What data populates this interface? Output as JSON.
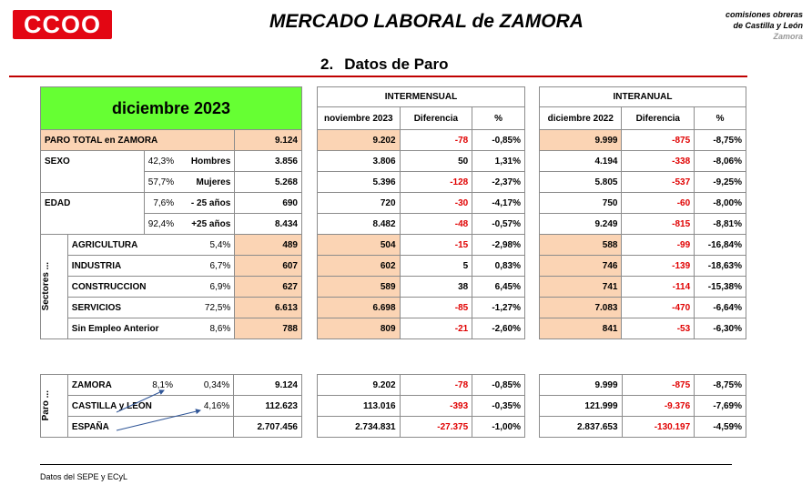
{
  "header": {
    "logo_text": "CCOO",
    "title": "MERCADO LABORAL de ZAMORA",
    "org_line1": "comisiones obreras",
    "org_line2": "de Castilla y León",
    "org_line3": "Zamora",
    "section_num": "2.",
    "section_title": "Datos de Paro"
  },
  "left": {
    "month": "diciembre 2023",
    "total_label": "PARO TOTAL en ZAMORA",
    "total_value": "9.124",
    "sexo_label": "SEXO",
    "sexo_rows": [
      {
        "pct": "42,3%",
        "label": "Hombres",
        "value": "3.856"
      },
      {
        "pct": "57,7%",
        "label": "Mujeres",
        "value": "5.268"
      }
    ],
    "edad_label": "EDAD",
    "edad_rows": [
      {
        "pct": "7,6%",
        "label": "- 25 años",
        "value": "690"
      },
      {
        "pct": "92,4%",
        "label": "+25 años",
        "value": "8.434"
      }
    ],
    "sectores_label": "Sectores ...",
    "sector_rows": [
      {
        "label": "AGRICULTURA",
        "pct": "5,4%",
        "value": "489"
      },
      {
        "label": "INDUSTRIA",
        "pct": "6,7%",
        "value": "607"
      },
      {
        "label": "CONSTRUCCION",
        "pct": "6,9%",
        "value": "627"
      },
      {
        "label": "SERVICIOS",
        "pct": "72,5%",
        "value": "6.613"
      },
      {
        "label": "Sin Empleo Anterior",
        "pct": "8,6%",
        "value": "788"
      }
    ],
    "paro_label": "Paro ...",
    "region_rows": [
      {
        "label": "ZAMORA",
        "pct1": "8,1%",
        "pct2": "0,34%",
        "value": "9.124"
      },
      {
        "label": "CASTILLA y LEON",
        "pct1": "",
        "pct2": "4,16%",
        "value": "112.623"
      },
      {
        "label": "ESPAÑA",
        "pct1": "",
        "pct2": "",
        "value": "2.707.456"
      }
    ]
  },
  "intermensual": {
    "title": "INTERMENSUAL",
    "col1": "noviembre 2023",
    "col2": "Diferencia",
    "col3": "%",
    "total": [
      "9.202",
      "-78",
      "-0,85%"
    ],
    "rows": [
      [
        "3.806",
        "50",
        "1,31%"
      ],
      [
        "5.396",
        "-128",
        "-2,37%"
      ],
      [
        "720",
        "-30",
        "-4,17%"
      ],
      [
        "8.482",
        "-48",
        "-0,57%"
      ],
      [
        "504",
        "-15",
        "-2,98%"
      ],
      [
        "602",
        "5",
        "0,83%"
      ],
      [
        "589",
        "38",
        "6,45%"
      ],
      [
        "6.698",
        "-85",
        "-1,27%"
      ],
      [
        "809",
        "-21",
        "-2,60%"
      ]
    ],
    "regions": [
      [
        "9.202",
        "-78",
        "-0,85%"
      ],
      [
        "113.016",
        "-393",
        "-0,35%"
      ],
      [
        "2.734.831",
        "-27.375",
        "-1,00%"
      ]
    ]
  },
  "interanual": {
    "title": "INTERANUAL",
    "col1": "diciembre 2022",
    "col2": "Diferencia",
    "col3": "%",
    "total": [
      "9.999",
      "-875",
      "-8,75%"
    ],
    "rows": [
      [
        "4.194",
        "-338",
        "-8,06%"
      ],
      [
        "5.805",
        "-537",
        "-9,25%"
      ],
      [
        "750",
        "-60",
        "-8,00%"
      ],
      [
        "9.249",
        "-815",
        "-8,81%"
      ],
      [
        "588",
        "-99",
        "-16,84%"
      ],
      [
        "746",
        "-139",
        "-18,63%"
      ],
      [
        "741",
        "-114",
        "-15,38%"
      ],
      [
        "7.083",
        "-470",
        "-6,64%"
      ],
      [
        "841",
        "-53",
        "-6,30%"
      ]
    ],
    "regions": [
      [
        "9.999",
        "-875",
        "-8,75%"
      ],
      [
        "121.999",
        "-9.376",
        "-7,69%"
      ],
      [
        "2.837.653",
        "-130.197",
        "-4,59%"
      ]
    ]
  },
  "footer": "Datos del SEPE y ECyL",
  "colors": {
    "brand": "#e30613",
    "highlight": "#fbd4b4",
    "month_bg": "#66ff33",
    "negative": "#e00000",
    "rule": "#c00000"
  }
}
